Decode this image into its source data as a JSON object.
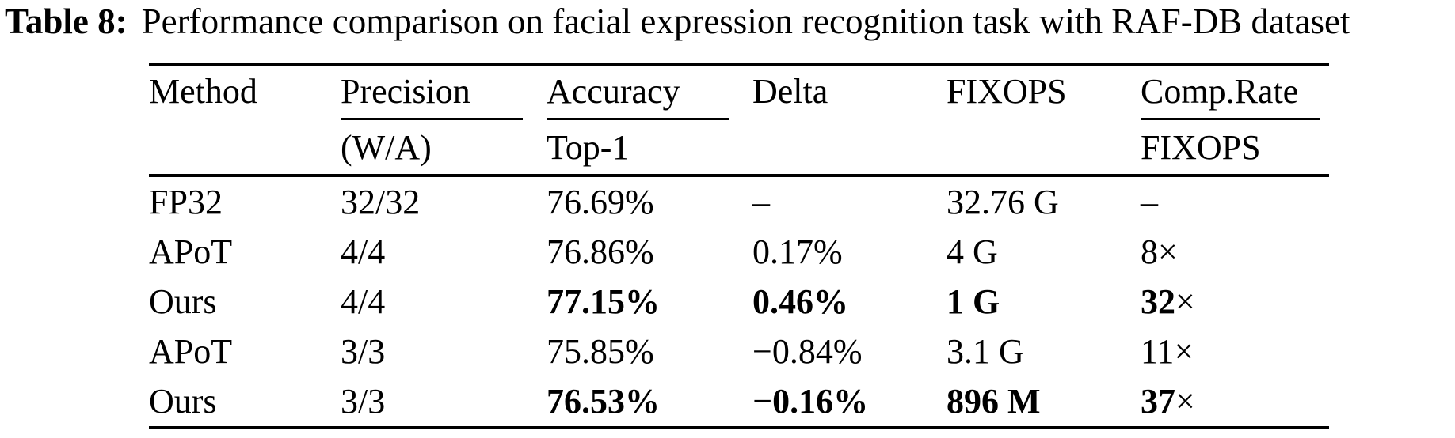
{
  "title": {
    "label": "Table 8:",
    "text": "Performance comparison on facial expression recognition task with RAF-DB dataset"
  },
  "table": {
    "columns": [
      {
        "header": "Method",
        "subheader": ""
      },
      {
        "header": "Precision",
        "subheader": "(W/A)"
      },
      {
        "header": "Accuracy",
        "subheader": "Top-1"
      },
      {
        "header": "Delta",
        "subheader": ""
      },
      {
        "header": "FIXOPS",
        "subheader": ""
      },
      {
        "header": "Comp.Rate",
        "subheader": "FIXOPS"
      }
    ],
    "rows": [
      {
        "method": "FP32",
        "precision": "32/32",
        "accuracy": "76.69%",
        "delta": "–",
        "fixops": "32.76 G",
        "comp_rate": "–",
        "comp_rate_times": "",
        "bold": false
      },
      {
        "method": "APoT",
        "precision": "4/4",
        "accuracy": "76.86%",
        "delta": "0.17%",
        "fixops": "4 G",
        "comp_rate": "8",
        "comp_rate_times": "×",
        "bold": false
      },
      {
        "method": "Ours",
        "precision": "4/4",
        "accuracy": "77.15%",
        "delta": "0.46%",
        "fixops": "1 G",
        "comp_rate": "32",
        "comp_rate_times": "×",
        "bold": true
      },
      {
        "method": "APoT",
        "precision": "3/3",
        "accuracy": "75.85%",
        "delta": "−0.84%",
        "fixops": "3.1 G",
        "comp_rate": "11",
        "comp_rate_times": "×",
        "bold": false
      },
      {
        "method": "Ours",
        "precision": "3/3",
        "accuracy": "76.53%",
        "delta": "−0.16%",
        "fixops": "896 M",
        "comp_rate": "37",
        "comp_rate_times": "×",
        "bold": true
      }
    ]
  },
  "colors": {
    "text": "#000000",
    "background": "#ffffff",
    "rule": "#000000"
  },
  "chart_data": {
    "type": "table",
    "title": "Table 8: Performance comparison on facial expression recognition task with RAF-DB dataset",
    "columns": [
      "Method",
      "Precision (W/A)",
      "Accuracy Top-1",
      "Delta",
      "FIXOPS",
      "Comp.Rate FIXOPS"
    ],
    "rows": [
      [
        "FP32",
        "32/32",
        "76.69%",
        "–",
        "32.76 G",
        "–"
      ],
      [
        "APoT",
        "4/4",
        "76.86%",
        "0.17%",
        "4 G",
        "8×"
      ],
      [
        "Ours",
        "4/4",
        "77.15%",
        "0.46%",
        "1 G",
        "32×"
      ],
      [
        "APoT",
        "3/3",
        "75.85%",
        "−0.84%",
        "3.1 G",
        "11×"
      ],
      [
        "Ours",
        "3/3",
        "76.53%",
        "−0.16%",
        "896 M",
        "37×"
      ]
    ],
    "bold_rows": [
      2,
      4
    ]
  }
}
